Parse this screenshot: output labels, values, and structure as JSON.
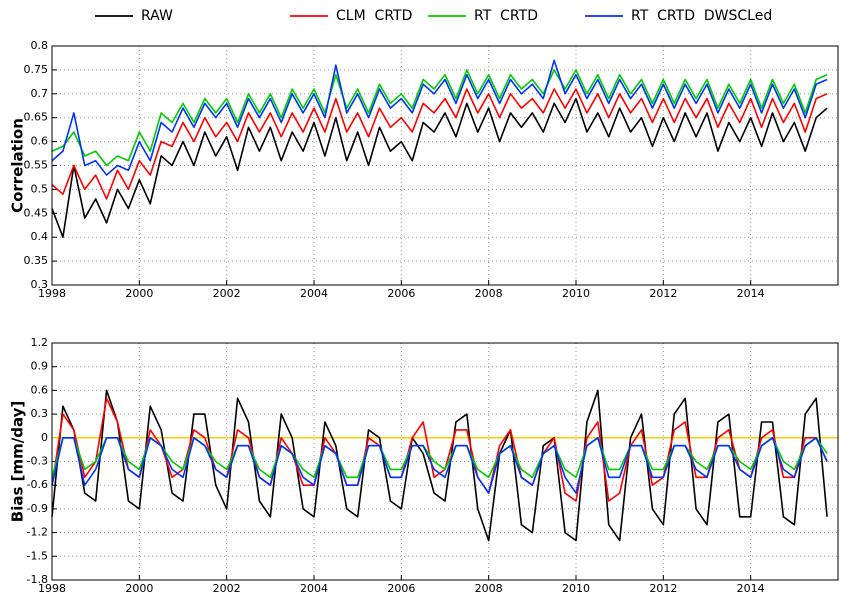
{
  "chart_data": [
    {
      "type": "line",
      "y_label": "Correlation",
      "x": [
        1998,
        1998.25,
        1998.5,
        1998.75,
        1999,
        1999.25,
        1999.5,
        1999.75,
        2000,
        2000.25,
        2000.5,
        2000.75,
        2001,
        2001.25,
        2001.5,
        2001.75,
        2002,
        2002.25,
        2002.5,
        2002.75,
        2003,
        2003.25,
        2003.5,
        2003.75,
        2004,
        2004.25,
        2004.5,
        2004.75,
        2005,
        2005.25,
        2005.5,
        2005.75,
        2006,
        2006.25,
        2006.5,
        2006.75,
        2007,
        2007.25,
        2007.5,
        2007.75,
        2008,
        2008.25,
        2008.5,
        2008.75,
        2009,
        2009.25,
        2009.5,
        2009.75,
        2010,
        2010.25,
        2010.5,
        2010.75,
        2011,
        2011.25,
        2011.5,
        2011.75,
        2012,
        2012.25,
        2012.5,
        2012.75,
        2013,
        2013.25,
        2013.5,
        2013.75,
        2014,
        2014.25,
        2014.5,
        2014.75,
        2015,
        2015.25,
        2015.5,
        2015.75
      ],
      "xlim": [
        1998,
        2016
      ],
      "xticks": [
        1998,
        2000,
        2002,
        2004,
        2006,
        2008,
        2010,
        2012,
        2014
      ],
      "ylim": [
        0.3,
        0.8
      ],
      "yticks": [
        0.3,
        0.35,
        0.4,
        0.45,
        0.5,
        0.55,
        0.6,
        0.65,
        0.7,
        0.75,
        0.8
      ],
      "grid": true,
      "series": [
        {
          "name": "RAW",
          "color": "#000000",
          "values": [
            0.46,
            0.4,
            0.55,
            0.44,
            0.48,
            0.43,
            0.5,
            0.46,
            0.52,
            0.47,
            0.57,
            0.55,
            0.6,
            0.55,
            0.62,
            0.57,
            0.61,
            0.54,
            0.63,
            0.58,
            0.63,
            0.56,
            0.62,
            0.58,
            0.64,
            0.57,
            0.65,
            0.56,
            0.62,
            0.55,
            0.63,
            0.58,
            0.6,
            0.56,
            0.64,
            0.62,
            0.66,
            0.61,
            0.68,
            0.62,
            0.67,
            0.6,
            0.66,
            0.63,
            0.66,
            0.62,
            0.68,
            0.64,
            0.69,
            0.62,
            0.66,
            0.61,
            0.67,
            0.62,
            0.65,
            0.59,
            0.65,
            0.6,
            0.66,
            0.61,
            0.66,
            0.58,
            0.64,
            0.6,
            0.65,
            0.59,
            0.66,
            0.6,
            0.64,
            0.58,
            0.65,
            0.67
          ]
        },
        {
          "name": "CLM  CRTD",
          "color": "#ff0000",
          "values": [
            0.51,
            0.49,
            0.55,
            0.5,
            0.53,
            0.48,
            0.54,
            0.5,
            0.56,
            0.53,
            0.6,
            0.59,
            0.64,
            0.6,
            0.65,
            0.61,
            0.64,
            0.6,
            0.66,
            0.62,
            0.66,
            0.61,
            0.66,
            0.62,
            0.67,
            0.62,
            0.69,
            0.62,
            0.66,
            0.61,
            0.67,
            0.63,
            0.65,
            0.62,
            0.68,
            0.66,
            0.69,
            0.65,
            0.71,
            0.66,
            0.7,
            0.65,
            0.7,
            0.67,
            0.69,
            0.66,
            0.71,
            0.67,
            0.71,
            0.66,
            0.7,
            0.65,
            0.7,
            0.66,
            0.69,
            0.64,
            0.69,
            0.64,
            0.69,
            0.65,
            0.69,
            0.63,
            0.68,
            0.64,
            0.69,
            0.63,
            0.69,
            0.64,
            0.68,
            0.62,
            0.69,
            0.7
          ]
        },
        {
          "name": "RT  CRTD",
          "color": "#00cc00",
          "values": [
            0.58,
            0.59,
            0.62,
            0.57,
            0.58,
            0.55,
            0.57,
            0.56,
            0.62,
            0.58,
            0.66,
            0.64,
            0.68,
            0.64,
            0.69,
            0.66,
            0.69,
            0.64,
            0.7,
            0.66,
            0.7,
            0.65,
            0.71,
            0.67,
            0.71,
            0.66,
            0.74,
            0.67,
            0.71,
            0.66,
            0.72,
            0.68,
            0.7,
            0.67,
            0.73,
            0.71,
            0.74,
            0.69,
            0.75,
            0.7,
            0.74,
            0.69,
            0.74,
            0.71,
            0.73,
            0.7,
            0.75,
            0.71,
            0.75,
            0.7,
            0.74,
            0.69,
            0.74,
            0.7,
            0.73,
            0.68,
            0.73,
            0.68,
            0.73,
            0.69,
            0.73,
            0.67,
            0.72,
            0.68,
            0.73,
            0.67,
            0.73,
            0.68,
            0.72,
            0.66,
            0.73,
            0.74
          ]
        },
        {
          "name": "RT  CRTD  DWSCLed",
          "color": "#0033ff",
          "values": [
            0.56,
            0.58,
            0.66,
            0.55,
            0.56,
            0.53,
            0.55,
            0.54,
            0.6,
            0.56,
            0.64,
            0.62,
            0.67,
            0.63,
            0.68,
            0.65,
            0.68,
            0.63,
            0.69,
            0.65,
            0.69,
            0.64,
            0.7,
            0.66,
            0.7,
            0.65,
            0.76,
            0.66,
            0.7,
            0.65,
            0.71,
            0.67,
            0.69,
            0.66,
            0.72,
            0.7,
            0.73,
            0.68,
            0.74,
            0.69,
            0.73,
            0.68,
            0.73,
            0.7,
            0.72,
            0.69,
            0.77,
            0.7,
            0.74,
            0.69,
            0.73,
            0.68,
            0.73,
            0.69,
            0.72,
            0.67,
            0.72,
            0.67,
            0.72,
            0.68,
            0.72,
            0.66,
            0.71,
            0.67,
            0.72,
            0.66,
            0.72,
            0.67,
            0.71,
            0.65,
            0.72,
            0.73
          ]
        }
      ]
    },
    {
      "type": "line",
      "y_label": "Bias [mm/day]",
      "x": [
        1998,
        1998.25,
        1998.5,
        1998.75,
        1999,
        1999.25,
        1999.5,
        1999.75,
        2000,
        2000.25,
        2000.5,
        2000.75,
        2001,
        2001.25,
        2001.5,
        2001.75,
        2002,
        2002.25,
        2002.5,
        2002.75,
        2003,
        2003.25,
        2003.5,
        2003.75,
        2004,
        2004.25,
        2004.5,
        2004.75,
        2005,
        2005.25,
        2005.5,
        2005.75,
        2006,
        2006.25,
        2006.5,
        2006.75,
        2007,
        2007.25,
        2007.5,
        2007.75,
        2008,
        2008.25,
        2008.5,
        2008.75,
        2009,
        2009.25,
        2009.5,
        2009.75,
        2010,
        2010.25,
        2010.5,
        2010.75,
        2011,
        2011.25,
        2011.5,
        2011.75,
        2012,
        2012.25,
        2012.5,
        2012.75,
        2013,
        2013.25,
        2013.5,
        2013.75,
        2014,
        2014.25,
        2014.5,
        2014.75,
        2015,
        2015.25,
        2015.5,
        2015.75
      ],
      "xlim": [
        1998,
        2016
      ],
      "xticks": [
        1998,
        2000,
        2002,
        2004,
        2006,
        2008,
        2010,
        2012,
        2014
      ],
      "ylim": [
        -1.8,
        1.2
      ],
      "yticks": [
        -1.8,
        -1.5,
        -1.2,
        -0.9,
        -0.6,
        -0.3,
        0,
        0.3,
        0.6,
        0.9,
        1.2
      ],
      "grid": true,
      "hline": 0,
      "hline_color": "#ffcc00",
      "series": [
        {
          "color": "#000000",
          "values": [
            -1.0,
            0.4,
            0.1,
            -0.7,
            -0.8,
            0.6,
            0.2,
            -0.8,
            -0.9,
            0.4,
            0.1,
            -0.7,
            -0.8,
            0.3,
            0.3,
            -0.6,
            -0.9,
            0.5,
            0.2,
            -0.8,
            -1.0,
            0.3,
            0.0,
            -0.9,
            -1.0,
            0.2,
            -0.1,
            -0.9,
            -1.0,
            0.1,
            0.0,
            -0.8,
            -0.9,
            0.0,
            -0.2,
            -0.7,
            -0.8,
            0.2,
            0.3,
            -0.9,
            -1.3,
            -0.2,
            0.1,
            -1.1,
            -1.2,
            -0.1,
            0.0,
            -1.2,
            -1.3,
            0.2,
            0.6,
            -1.1,
            -1.3,
            0.0,
            0.3,
            -0.9,
            -1.1,
            0.3,
            0.5,
            -0.9,
            -1.1,
            0.2,
            0.3,
            -1.0,
            -1.0,
            0.2,
            0.2,
            -1.0,
            -1.1,
            0.3,
            0.5,
            -1.0
          ]
        },
        {
          "color": "#ff0000",
          "values": [
            -0.6,
            0.3,
            0.1,
            -0.5,
            -0.3,
            0.5,
            0.2,
            -0.4,
            -0.5,
            0.1,
            -0.1,
            -0.5,
            -0.4,
            0.1,
            0.0,
            -0.4,
            -0.5,
            0.1,
            0.0,
            -0.5,
            -0.6,
            0.0,
            -0.2,
            -0.6,
            -0.6,
            0.0,
            -0.2,
            -0.6,
            -0.6,
            0.0,
            -0.1,
            -0.5,
            -0.5,
            0.0,
            0.2,
            -0.5,
            -0.4,
            0.1,
            0.1,
            -0.5,
            -0.7,
            -0.1,
            0.1,
            -0.5,
            -0.6,
            -0.2,
            0.0,
            -0.7,
            -0.8,
            0.0,
            0.2,
            -0.8,
            -0.7,
            -0.1,
            0.1,
            -0.6,
            -0.5,
            0.1,
            0.2,
            -0.5,
            -0.5,
            0.0,
            0.1,
            -0.4,
            -0.5,
            0.0,
            0.1,
            -0.5,
            -0.5,
            0.0,
            0.0,
            -0.3
          ]
        },
        {
          "color": "#00cc00",
          "values": [
            -0.5,
            0.0,
            0.0,
            -0.4,
            -0.3,
            0.0,
            0.0,
            -0.3,
            -0.4,
            0.0,
            -0.1,
            -0.3,
            -0.4,
            0.0,
            -0.1,
            -0.3,
            -0.4,
            -0.1,
            -0.1,
            -0.4,
            -0.5,
            -0.1,
            -0.2,
            -0.4,
            -0.5,
            -0.1,
            -0.2,
            -0.5,
            -0.5,
            -0.1,
            -0.1,
            -0.4,
            -0.4,
            -0.1,
            -0.1,
            -0.3,
            -0.4,
            -0.1,
            -0.1,
            -0.4,
            -0.5,
            -0.2,
            -0.1,
            -0.4,
            -0.5,
            -0.2,
            -0.1,
            -0.4,
            -0.5,
            -0.1,
            0.0,
            -0.4,
            -0.4,
            -0.1,
            -0.1,
            -0.4,
            -0.4,
            -0.1,
            -0.1,
            -0.3,
            -0.4,
            -0.1,
            -0.1,
            -0.3,
            -0.4,
            -0.1,
            0.0,
            -0.3,
            -0.4,
            -0.1,
            0.0,
            -0.2
          ]
        },
        {
          "color": "#0033ff",
          "values": [
            -0.6,
            0.0,
            0.0,
            -0.6,
            -0.4,
            0.0,
            0.0,
            -0.4,
            -0.5,
            0.0,
            -0.1,
            -0.4,
            -0.5,
            0.0,
            -0.1,
            -0.4,
            -0.5,
            -0.1,
            -0.1,
            -0.5,
            -0.6,
            -0.1,
            -0.2,
            -0.5,
            -0.6,
            -0.1,
            -0.2,
            -0.6,
            -0.6,
            -0.1,
            -0.1,
            -0.5,
            -0.5,
            -0.1,
            -0.1,
            -0.4,
            -0.5,
            -0.1,
            -0.1,
            -0.5,
            -0.7,
            -0.2,
            -0.1,
            -0.5,
            -0.6,
            -0.2,
            -0.1,
            -0.5,
            -0.7,
            -0.1,
            0.0,
            -0.5,
            -0.5,
            -0.1,
            -0.1,
            -0.5,
            -0.5,
            -0.1,
            -0.1,
            -0.4,
            -0.5,
            -0.1,
            -0.1,
            -0.4,
            -0.5,
            -0.1,
            0.0,
            -0.4,
            -0.5,
            -0.1,
            0.0,
            -0.3
          ]
        }
      ]
    }
  ]
}
